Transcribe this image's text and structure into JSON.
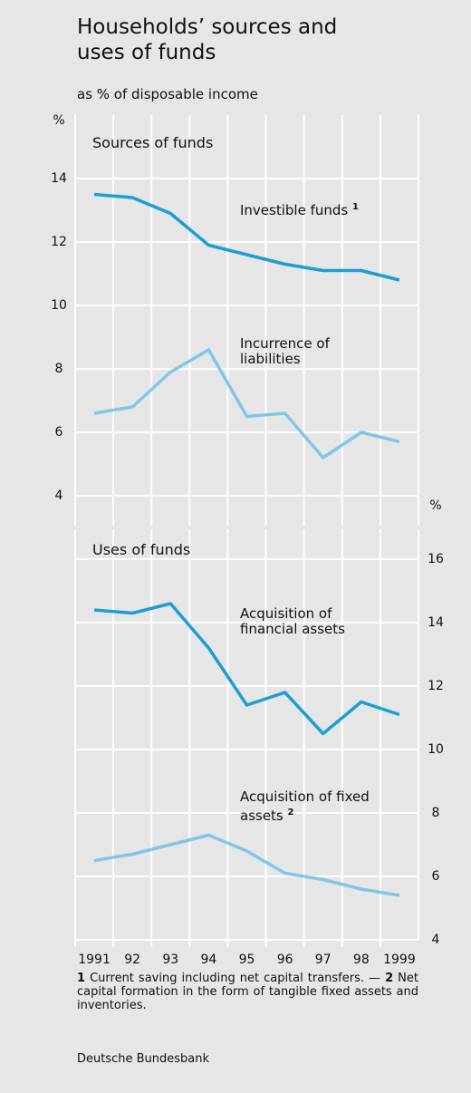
{
  "header": {
    "title": "Households’ sources and uses of funds",
    "subtitle": "as % of disposable income"
  },
  "chart_data": [
    {
      "type": "line",
      "title": "Sources of funds",
      "y_label": "%",
      "y_axis_side": "left",
      "categories": [
        "1991",
        "92",
        "93",
        "94",
        "95",
        "96",
        "97",
        "98",
        "1999"
      ],
      "ylim": [
        3,
        16
      ],
      "yticks": [
        4,
        6,
        8,
        10,
        12,
        14
      ],
      "grid": true,
      "series": [
        {
          "name": "Investible funds",
          "footnote_ref": "1",
          "color": "#1c9ed3",
          "values": [
            13.5,
            13.4,
            12.9,
            11.9,
            11.6,
            11.3,
            11.1,
            11.1,
            10.8
          ]
        },
        {
          "name": "Incurrence of liabilities",
          "color": "#82c6e6",
          "values": [
            6.6,
            6.8,
            7.9,
            8.6,
            6.5,
            6.6,
            5.2,
            6.0,
            5.7
          ]
        }
      ]
    },
    {
      "type": "line",
      "title": "Uses of funds",
      "y_label": "%",
      "y_axis_side": "right",
      "categories": [
        "1991",
        "92",
        "93",
        "94",
        "95",
        "96",
        "97",
        "98",
        "1999"
      ],
      "ylim": [
        4,
        17
      ],
      "yticks": [
        4,
        6,
        8,
        10,
        12,
        14,
        16
      ],
      "grid": true,
      "series": [
        {
          "name": "Acquisition of financial assets",
          "color": "#1c9ed3",
          "values": [
            14.4,
            14.3,
            14.6,
            13.2,
            11.4,
            11.8,
            10.5,
            11.5,
            11.1
          ]
        },
        {
          "name": "Acquisition of fixed assets",
          "footnote_ref": "2",
          "color": "#82c6e6",
          "values": [
            6.5,
            6.7,
            7.0,
            7.3,
            6.8,
            6.1,
            5.9,
            5.6,
            5.4
          ]
        }
      ]
    }
  ],
  "footnotes": [
    {
      "mark": "1",
      "text": "Current saving including net capital transfers."
    },
    {
      "mark": "2",
      "text": "Net capital formation in the form of tangible fixed assets and inventories."
    }
  ],
  "footnote_separator": "—",
  "source": "Deutsche Bundesbank"
}
